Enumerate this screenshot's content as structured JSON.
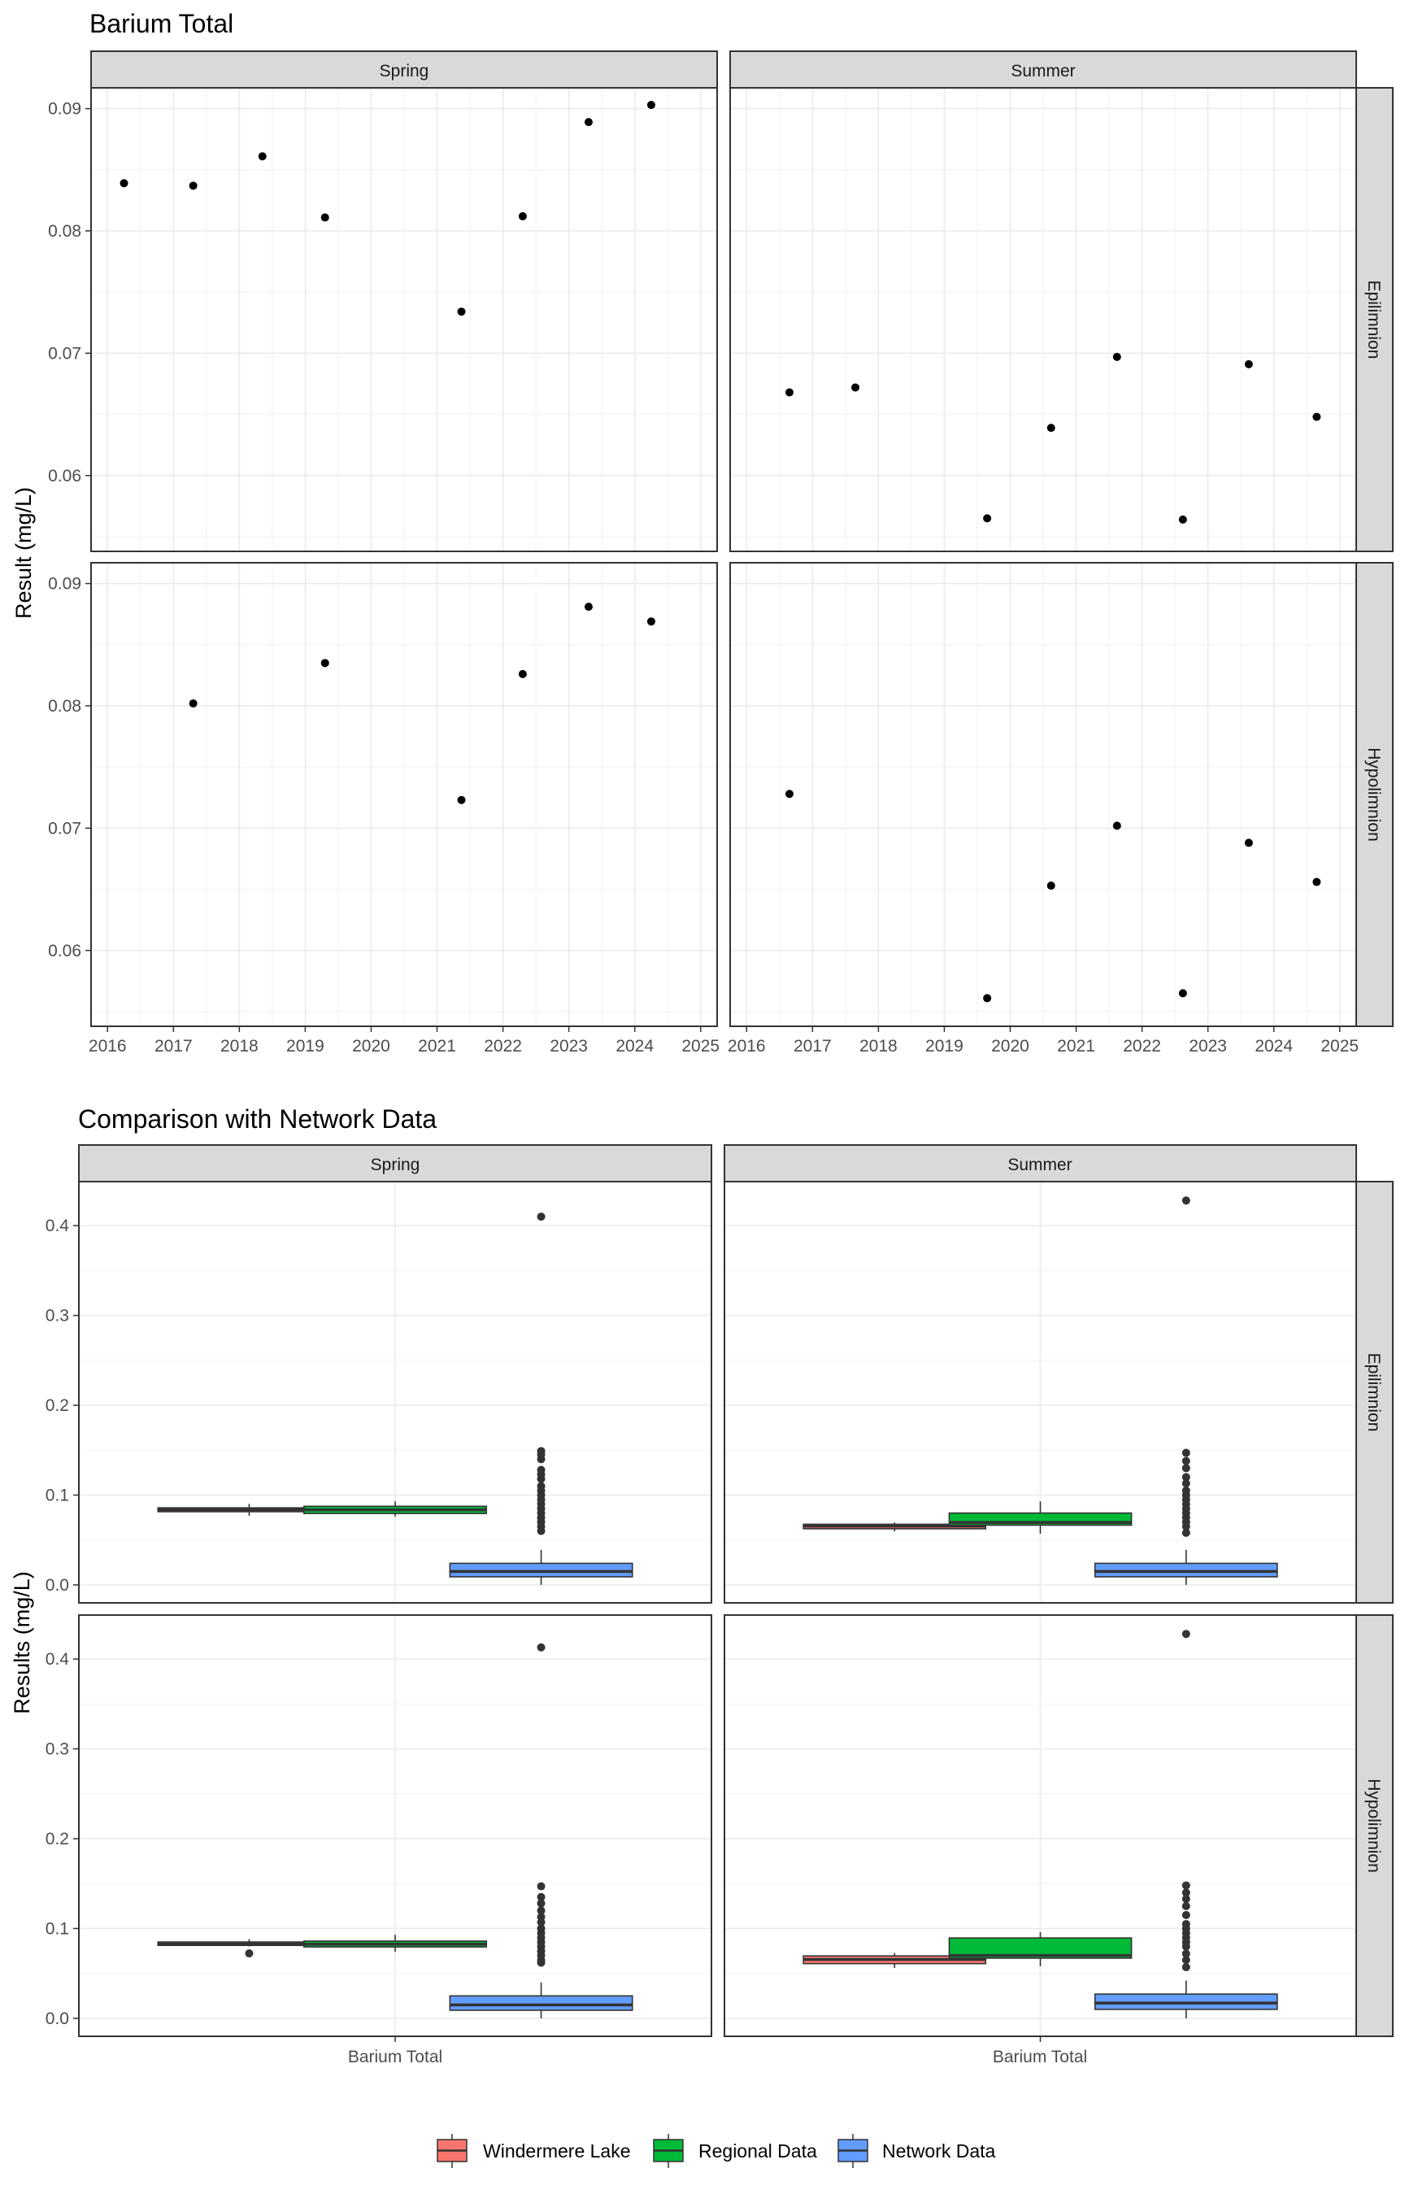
{
  "chart_data": [
    {
      "type": "scatter",
      "title": "Barium Total",
      "ylabel": "Result (mg/L)",
      "xlabel": "",
      "facet_columns": [
        "Spring",
        "Summer"
      ],
      "facet_rows": [
        "Epilimnion",
        "Hypolimnion"
      ],
      "xlim": [
        2015.75,
        2025.25
      ],
      "ylim": [
        0.0538,
        0.0917
      ],
      "x_ticks": [
        2016,
        2017,
        2018,
        2019,
        2020,
        2021,
        2022,
        2023,
        2024,
        2025
      ],
      "x_tick_labels": [
        "2016",
        "2017",
        "2018",
        "2019",
        "2020",
        "2021",
        "2022",
        "2023",
        "2024",
        "2025"
      ],
      "y_ticks": [
        0.06,
        0.07,
        0.08,
        0.09
      ],
      "y_tick_labels": [
        "0.06",
        "0.07",
        "0.08",
        "0.09"
      ],
      "grid": true,
      "panels": [
        {
          "col": "Spring",
          "row": "Epilimnion",
          "points": [
            [
              2016.25,
              0.0839
            ],
            [
              2017.3,
              0.0837
            ],
            [
              2018.35,
              0.0861
            ],
            [
              2019.3,
              0.0811
            ],
            [
              2021.37,
              0.0734
            ],
            [
              2022.3,
              0.0812
            ],
            [
              2023.3,
              0.0889
            ],
            [
              2024.25,
              0.0903
            ]
          ]
        },
        {
          "col": "Summer",
          "row": "Epilimnion",
          "points": [
            [
              2016.65,
              0.0668
            ],
            [
              2017.65,
              0.0672
            ],
            [
              2019.65,
              0.0565
            ],
            [
              2020.62,
              0.0639
            ],
            [
              2021.62,
              0.0697
            ],
            [
              2022.62,
              0.0564
            ],
            [
              2023.62,
              0.0691
            ],
            [
              2024.65,
              0.0648
            ]
          ]
        },
        {
          "col": "Spring",
          "row": "Hypolimnion",
          "points": [
            [
              2017.3,
              0.0802
            ],
            [
              2019.3,
              0.0835
            ],
            [
              2021.37,
              0.0723
            ],
            [
              2022.3,
              0.0826
            ],
            [
              2023.3,
              0.0881
            ],
            [
              2024.25,
              0.0869
            ]
          ]
        },
        {
          "col": "Summer",
          "row": "Hypolimnion",
          "points": [
            [
              2016.65,
              0.0728
            ],
            [
              2019.65,
              0.0561
            ],
            [
              2020.62,
              0.0653
            ],
            [
              2021.62,
              0.0702
            ],
            [
              2022.62,
              0.0565
            ],
            [
              2023.62,
              0.0688
            ],
            [
              2024.65,
              0.0656
            ]
          ]
        }
      ]
    },
    {
      "type": "box",
      "title": "Comparison with Network Data",
      "ylabel": "Results (mg/L)",
      "xlabel": "",
      "facet_columns": [
        "Spring",
        "Summer"
      ],
      "facet_rows": [
        "Epilimnion",
        "Hypolimnion"
      ],
      "categories": [
        "Barium Total"
      ],
      "ylim": [
        -0.02,
        0.449
      ],
      "y_ticks": [
        0.0,
        0.1,
        0.2,
        0.3,
        0.4
      ],
      "y_tick_labels": [
        "0.0",
        "0.1",
        "0.2",
        "0.3",
        "0.4"
      ],
      "grid": true,
      "legend_position": "bottom",
      "legend": [
        {
          "name": "Windermere Lake",
          "color": "#F8766D"
        },
        {
          "name": "Regional Data",
          "color": "#00BA38"
        },
        {
          "name": "Network Data",
          "color": "#619CFF"
        }
      ],
      "panels": [
        {
          "col": "Spring",
          "row": "Epilimnion",
          "boxes": [
            {
              "series": "Windermere Lake",
              "whisker_low": 0.077,
              "q1": 0.0815,
              "median": 0.0838,
              "q3": 0.0858,
              "whisker_high": 0.0903,
              "outliers": []
            },
            {
              "series": "Regional Data",
              "whisker_low": 0.076,
              "q1": 0.0795,
              "median": 0.0835,
              "q3": 0.0875,
              "whisker_high": 0.093,
              "outliers": []
            },
            {
              "series": "Network Data",
              "whisker_low": 0.0,
              "q1": 0.009,
              "median": 0.015,
              "q3": 0.024,
              "whisker_high": 0.039,
              "outliers": [
                0.41,
                0.149,
                0.145,
                0.14,
                0.128,
                0.123,
                0.118,
                0.11,
                0.105,
                0.1,
                0.095,
                0.09,
                0.085,
                0.08,
                0.075,
                0.07,
                0.065,
                0.06
              ]
            }
          ]
        },
        {
          "col": "Summer",
          "row": "Epilimnion",
          "boxes": [
            {
              "series": "Windermere Lake",
              "whisker_low": 0.0595,
              "q1": 0.0625,
              "median": 0.0655,
              "q3": 0.0675,
              "whisker_high": 0.0695,
              "outliers": []
            },
            {
              "series": "Regional Data",
              "whisker_low": 0.057,
              "q1": 0.0665,
              "median": 0.0695,
              "q3": 0.08,
              "whisker_high": 0.093,
              "outliers": []
            },
            {
              "series": "Network Data",
              "whisker_low": 0.0,
              "q1": 0.009,
              "median": 0.015,
              "q3": 0.024,
              "whisker_high": 0.039,
              "outliers": [
                0.428,
                0.147,
                0.138,
                0.13,
                0.12,
                0.113,
                0.105,
                0.1,
                0.095,
                0.09,
                0.085,
                0.08,
                0.075,
                0.07,
                0.065,
                0.058
              ]
            }
          ]
        },
        {
          "col": "Spring",
          "row": "Hypolimnion",
          "boxes": [
            {
              "series": "Windermere Lake",
              "whisker_low": 0.08,
              "q1": 0.0812,
              "median": 0.0829,
              "q3": 0.085,
              "whisker_high": 0.0881,
              "outliers": [
                0.0723
              ]
            },
            {
              "series": "Regional Data",
              "whisker_low": 0.074,
              "q1": 0.0795,
              "median": 0.0825,
              "q3": 0.086,
              "whisker_high": 0.093,
              "outliers": []
            },
            {
              "series": "Network Data",
              "whisker_low": 0.0,
              "q1": 0.009,
              "median": 0.015,
              "q3": 0.025,
              "whisker_high": 0.04,
              "outliers": [
                0.413,
                0.147,
                0.135,
                0.128,
                0.12,
                0.113,
                0.107,
                0.1,
                0.095,
                0.09,
                0.085,
                0.08,
                0.075,
                0.07,
                0.065,
                0.062
              ]
            }
          ]
        },
        {
          "col": "Summer",
          "row": "Hypolimnion",
          "boxes": [
            {
              "series": "Windermere Lake",
              "whisker_low": 0.0561,
              "q1": 0.0609,
              "median": 0.0656,
              "q3": 0.0695,
              "whisker_high": 0.0728,
              "outliers": []
            },
            {
              "series": "Regional Data",
              "whisker_low": 0.058,
              "q1": 0.067,
              "median": 0.07,
              "q3": 0.0895,
              "whisker_high": 0.096,
              "outliers": []
            },
            {
              "series": "Network Data",
              "whisker_low": 0.0,
              "q1": 0.01,
              "median": 0.017,
              "q3": 0.027,
              "whisker_high": 0.042,
              "outliers": [
                0.428,
                0.148,
                0.14,
                0.133,
                0.125,
                0.115,
                0.105,
                0.1,
                0.095,
                0.09,
                0.085,
                0.08,
                0.072,
                0.065,
                0.057
              ]
            }
          ]
        }
      ]
    }
  ]
}
